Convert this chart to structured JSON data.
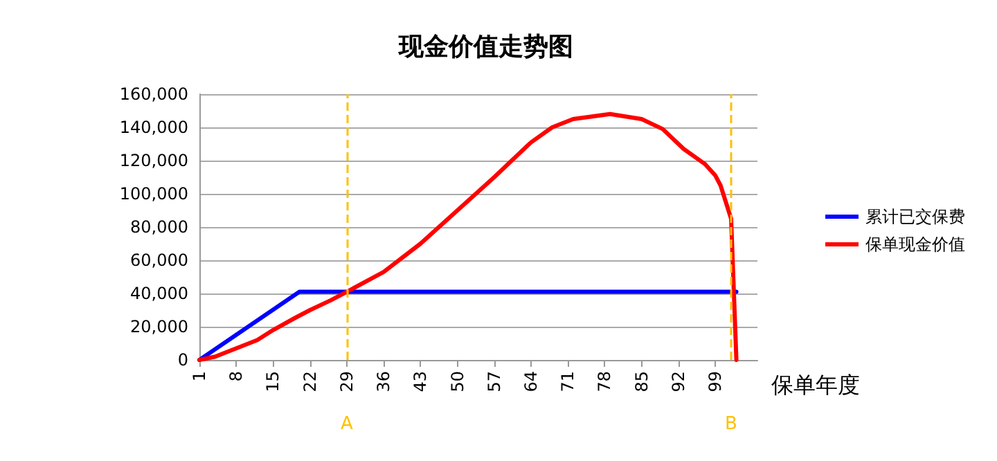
{
  "chart_data": {
    "type": "line",
    "title": "现金价值走势图",
    "xlabel": "保单年度",
    "xlim": [
      1,
      107
    ],
    "xticks": [
      1,
      8,
      15,
      22,
      29,
      36,
      43,
      50,
      57,
      64,
      71,
      78,
      85,
      92,
      99
    ],
    "ylim": [
      0,
      160000
    ],
    "yticks": [
      0,
      {
        "value": 20000,
        "label": "20,000"
      },
      {
        "value": 40000,
        "label": "40,000"
      },
      {
        "value": 60000,
        "label": "60,000"
      },
      {
        "value": 80000,
        "label": "80,000"
      },
      {
        "value": 100000,
        "label": "100,000"
      },
      {
        "value": 120000,
        "label": "120,000"
      },
      {
        "value": 140000,
        "label": "140,000"
      },
      {
        "value": 160000,
        "label": "160,000"
      }
    ],
    "series": [
      {
        "name": "累计已交保费",
        "color": "#0000ff",
        "x": [
          1,
          20,
          103
        ],
        "values": [
          0,
          41000,
          41000
        ]
      },
      {
        "name": "保单现金价值",
        "color": "#ff0000",
        "x": [
          1,
          4,
          8,
          12,
          15,
          19,
          22,
          26,
          29,
          36,
          43,
          50,
          57,
          64,
          68,
          72,
          79,
          85,
          89,
          93,
          97,
          99,
          100,
          101,
          102,
          103
        ],
        "values": [
          0,
          2000,
          7000,
          12000,
          18000,
          25000,
          30000,
          36000,
          41000,
          53000,
          70000,
          90000,
          110000,
          131000,
          140000,
          145000,
          148000,
          145000,
          139000,
          127000,
          118000,
          111000,
          105000,
          95000,
          85000,
          0
        ]
      }
    ],
    "ref_lines": [
      {
        "axis": "x",
        "value": 29,
        "label": "A",
        "color": "#ffc000",
        "line_style": "dashed"
      },
      {
        "axis": "x",
        "value": 102,
        "label": "B",
        "color": "#ffc000",
        "line_style": "dashed"
      }
    ],
    "grid": "y",
    "legend": "right",
    "marker": "none",
    "line_style": "solid"
  }
}
